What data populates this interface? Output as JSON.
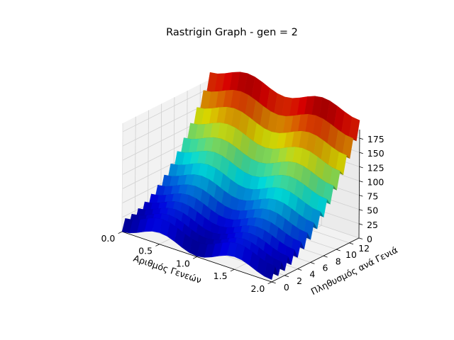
{
  "chart_data": {
    "type": "surface3d",
    "title": "Rastrigin Graph - gen = 2",
    "xlabel": "Αριθμός Γενεών",
    "ylabel": "Πληθυσμός ανά Γενιά",
    "zlabel": "",
    "xlim": [
      0,
      2
    ],
    "ylim": [
      0,
      13.5
    ],
    "zlim": [
      0,
      190
    ],
    "x_ticks": [
      0.0,
      0.5,
      1.0,
      1.5,
      2.0
    ],
    "x_tick_labels": [
      "0.0",
      "0.5",
      "1.0",
      "1.5",
      "2.0"
    ],
    "y_ticks": [
      0,
      2,
      4,
      6,
      8,
      10,
      12
    ],
    "y_tick_labels": [
      "0",
      "2",
      "4",
      "6",
      "8",
      "10",
      "12"
    ],
    "z_ticks": [
      0,
      25,
      50,
      75,
      100,
      125,
      150,
      175
    ],
    "z_tick_labels": [
      "0",
      "25",
      "50",
      "75",
      "100",
      "125",
      "150",
      "175"
    ],
    "grid": true,
    "colormap": "jet",
    "surface": {
      "x_grid": [
        0.0,
        0.1,
        0.2,
        0.3,
        0.4,
        0.5,
        0.6,
        0.7,
        0.8,
        0.9,
        1.0,
        1.1,
        1.2,
        1.3,
        1.4,
        1.5,
        1.6,
        1.7,
        1.8,
        1.9,
        2.0
      ],
      "y_grid": [
        0.0,
        0.5,
        1.0,
        1.5,
        2.0,
        2.5,
        3.0,
        3.5,
        4.0,
        4.5,
        5.0,
        5.5,
        6.0,
        6.5,
        7.0,
        7.5,
        8.0,
        8.5,
        9.0,
        9.5,
        10.0,
        10.5,
        11.0,
        11.5,
        12.0,
        12.5,
        13.0,
        13.5
      ],
      "z_formula": "10*n + y^2 - 10*cos(2*pi*y) + x^2 - 10*cos(2*pi*x), n = 2"
    }
  }
}
